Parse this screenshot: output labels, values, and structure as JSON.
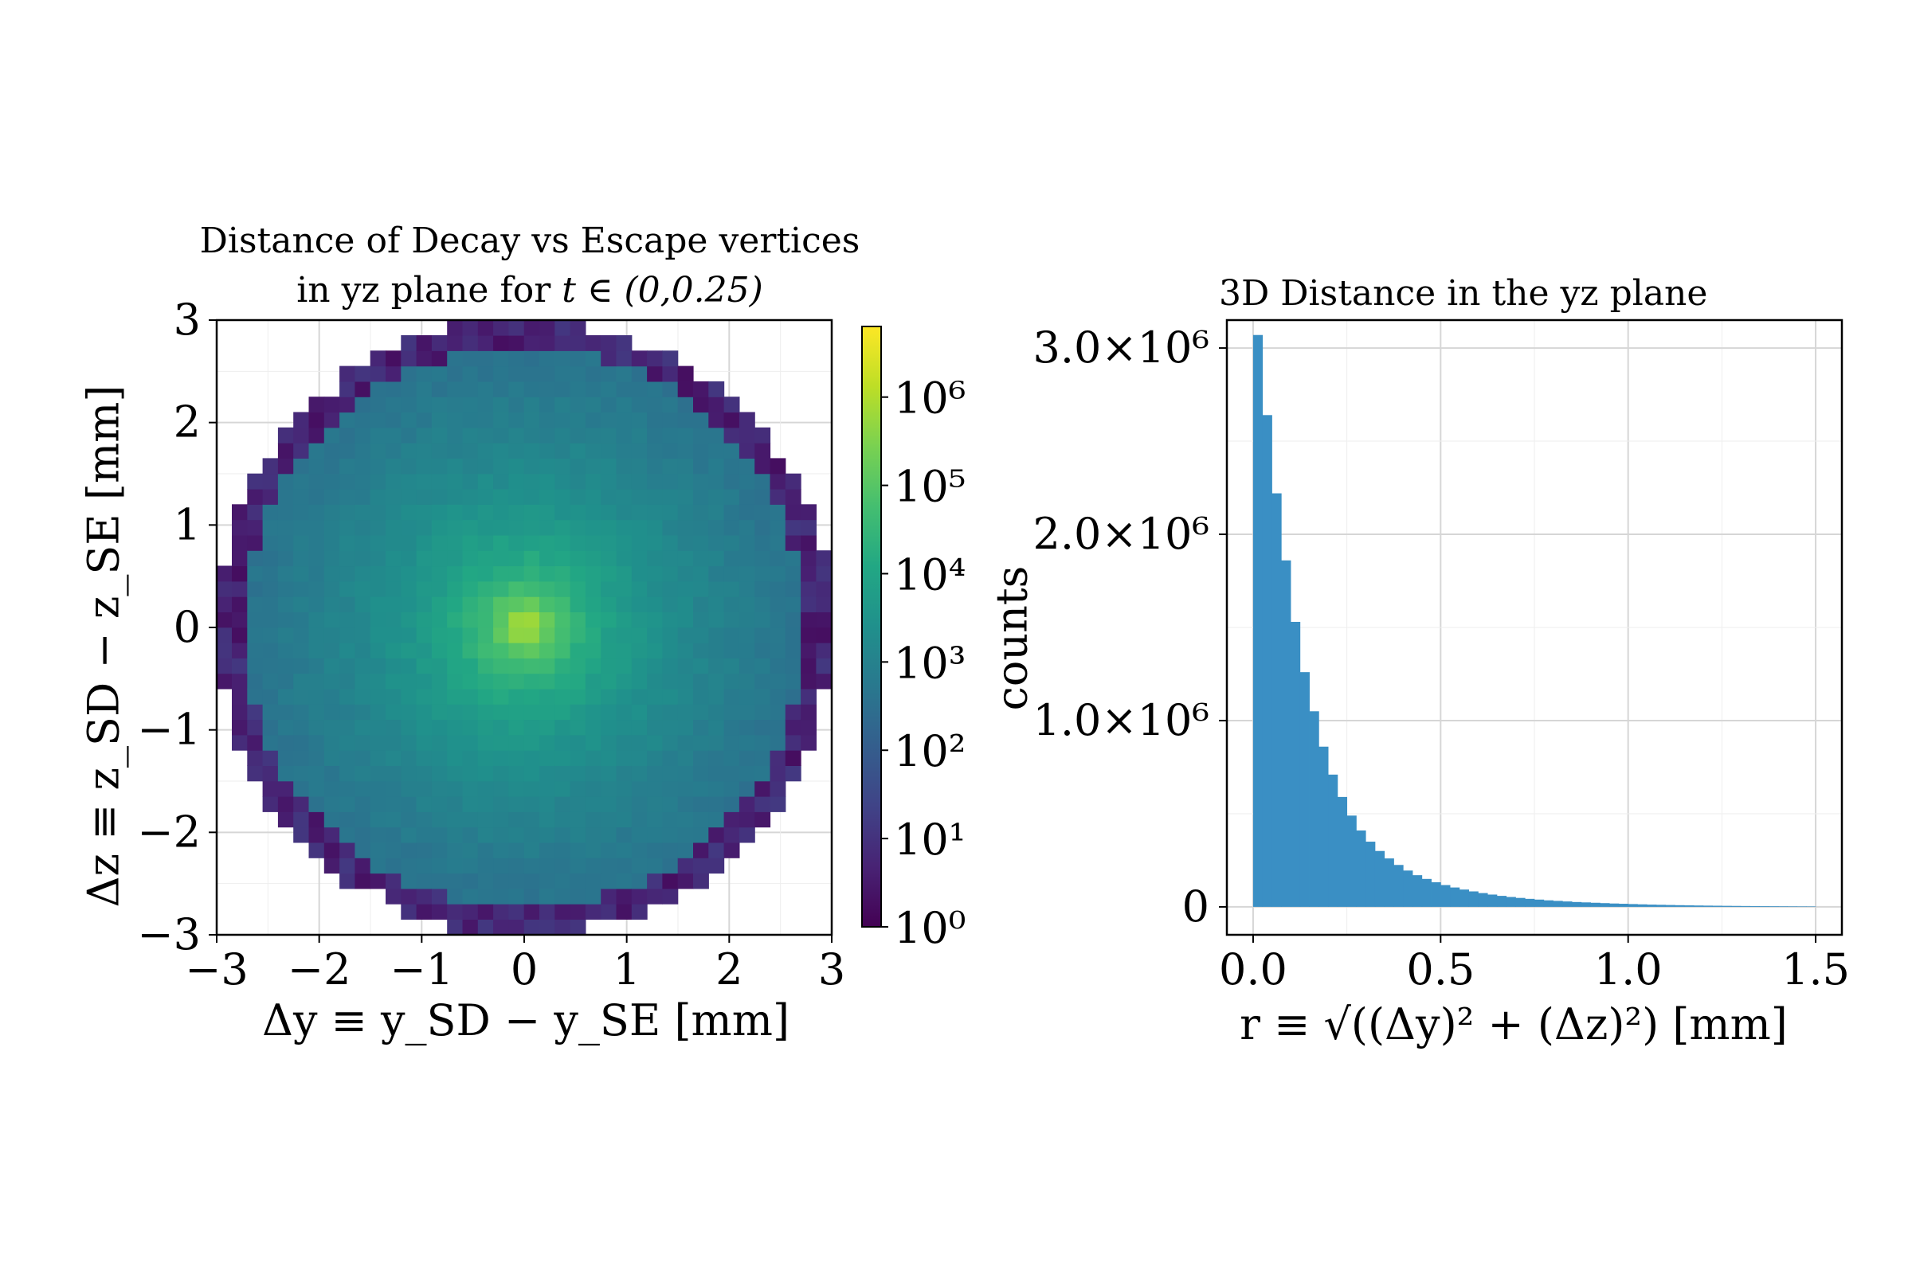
{
  "chart_data": [
    {
      "type": "heatmap",
      "title": "Distance of Decay vs Escape vertices",
      "title_line2_text": "in yz plane for",
      "title_line2_math": "t ∈ (0,0.25)",
      "xlabel": "Δy ≡ y_SD − y_SE [mm]",
      "ylabel": "Δz ≡ z_SD − z_SE [mm]",
      "xlim": [
        -3,
        3
      ],
      "ylim": [
        -3,
        3
      ],
      "xticks": [
        -3,
        -2,
        -1,
        0,
        1,
        2,
        3
      ],
      "yticks": [
        -3,
        -2,
        -1,
        0,
        1,
        2,
        3
      ],
      "bins": 40,
      "scale": "log10",
      "colormap": "viridis",
      "colorbar": {
        "range": [
          0,
          6.8
        ],
        "ticks": [
          0,
          1,
          2,
          3,
          4,
          5,
          6
        ],
        "tick_labels": [
          "10⁰",
          "10¹",
          "10²",
          "10³",
          "10⁴",
          "10⁵",
          "10⁶"
        ]
      },
      "support_radius_mm": 3.0,
      "peak_counts_log10": 6.8,
      "grid": true
    },
    {
      "type": "bar",
      "title": "3D Distance in the yz plane",
      "xlabel": "r ≡ √((Δy)² + (Δz)²) [mm]",
      "ylabel": "counts",
      "xlim": [
        -0.07,
        1.57
      ],
      "ylim": [
        -150000,
        3150000
      ],
      "xticks": [
        0.0,
        0.5,
        1.0,
        1.5
      ],
      "xtick_labels": [
        "0.0",
        "0.5",
        "1.0",
        "1.5"
      ],
      "yticks": [
        0,
        1000000,
        2000000,
        3000000
      ],
      "ytick_labels": [
        "0",
        "1.0×10⁶",
        "2.0×10⁶",
        "3.0×10⁶"
      ],
      "bar_color": "#3a8fc4",
      "bin_width": 0.025,
      "bin_start": 0.0,
      "values": [
        3070000,
        2640000,
        2220000,
        1860000,
        1530000,
        1260000,
        1050000,
        860000,
        710000,
        590000,
        490000,
        410000,
        350000,
        300000,
        260000,
        225000,
        195000,
        170000,
        150000,
        132000,
        117000,
        104000,
        93000,
        83000,
        74000,
        66000,
        59000,
        53000,
        48000,
        43000,
        39000,
        35000,
        32000,
        29000,
        26000,
        24000,
        22000,
        20000,
        18000,
        16500,
        15000,
        13500,
        12000,
        11000,
        10000,
        9000,
        8000,
        7300,
        6600,
        6000,
        5400,
        4900,
        4400,
        4000,
        3600,
        3300,
        3000,
        2700,
        2400,
        2200
      ],
      "grid": true
    }
  ]
}
